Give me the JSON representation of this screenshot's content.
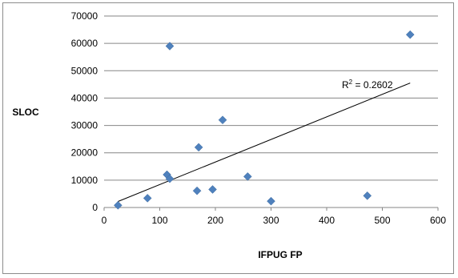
{
  "chart_data": {
    "type": "scatter",
    "title": "",
    "xlabel": "IFPUG FP",
    "ylabel": "SLOC",
    "xlim": [
      0,
      600
    ],
    "ylim": [
      0,
      70000
    ],
    "x_ticks": [
      "0",
      "100",
      "200",
      "300",
      "400",
      "500",
      "600"
    ],
    "y_ticks": [
      "0",
      "10000",
      "20000",
      "30000",
      "40000",
      "50000",
      "60000",
      "70000"
    ],
    "grid": "horizontal",
    "legend": "none",
    "marker_color": "#4f81bd",
    "trendline": {
      "type": "linear",
      "x_range": [
        25,
        550
      ],
      "y_at_start": 2200,
      "y_at_end": 45500,
      "label_sup": "2",
      "label_value": "0.2602"
    },
    "points": [
      {
        "x": 25,
        "y": 800
      },
      {
        "x": 78,
        "y": 3400
      },
      {
        "x": 113,
        "y": 12000
      },
      {
        "x": 118,
        "y": 10500
      },
      {
        "x": 118,
        "y": 59000
      },
      {
        "x": 167,
        "y": 6100
      },
      {
        "x": 170,
        "y": 22000
      },
      {
        "x": 195,
        "y": 6600
      },
      {
        "x": 213,
        "y": 32000
      },
      {
        "x": 258,
        "y": 11300
      },
      {
        "x": 300,
        "y": 2300
      },
      {
        "x": 473,
        "y": 4300
      },
      {
        "x": 550,
        "y": 63200
      }
    ]
  }
}
